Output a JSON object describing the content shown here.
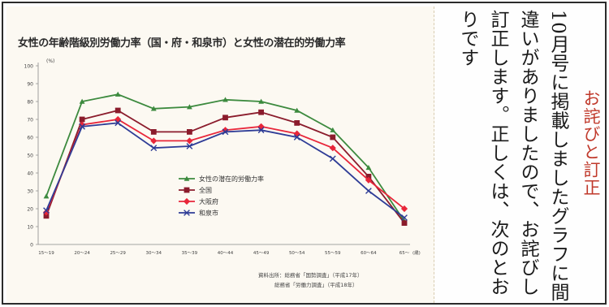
{
  "chart_data": {
    "type": "line",
    "title": "女性の年齢階級別労働力率（国・府・和泉市）と女性の潜在的労働力率",
    "ylabel": "(%)",
    "xlabel": "(歳)",
    "ylim": [
      0,
      100
    ],
    "yticks": [
      0,
      10,
      20,
      30,
      40,
      50,
      60,
      70,
      80,
      90,
      100
    ],
    "categories": [
      "15～19",
      "20～24",
      "25～29",
      "30～34",
      "35～39",
      "40～44",
      "45～49",
      "50～54",
      "55～59",
      "60～64",
      "65～"
    ],
    "series": [
      {
        "name": "女性の潜在的労働力率",
        "color": "#3c8a3e",
        "marker": "triangle",
        "values": [
          27,
          80,
          84,
          76,
          77,
          81,
          80,
          75,
          64,
          43,
          13
        ]
      },
      {
        "name": "全国",
        "color": "#8b1c2c",
        "marker": "square",
        "values": [
          16,
          70,
          75,
          63,
          63,
          71,
          74,
          68,
          60,
          38,
          12
        ]
      },
      {
        "name": "大阪府",
        "color": "#e8263a",
        "marker": "diamond",
        "values": [
          18,
          67,
          70,
          58,
          58,
          64,
          66,
          62,
          54,
          36,
          20
        ]
      },
      {
        "name": "和泉市",
        "color": "#2e3c96",
        "marker": "x",
        "values": [
          19,
          66,
          68,
          54,
          55,
          63,
          64,
          60,
          48,
          30,
          15
        ]
      }
    ],
    "legend_position": "center",
    "grid": false
  },
  "source": {
    "line1": "資料出所：総務省「国勢調査」（平成17年）",
    "line2": "総務省「労働力調査」（平成18年）"
  },
  "notice": {
    "title": "お詫びと訂正",
    "body": "10月号に掲載しましたグラフに間違いがありましたので、お詫びし訂正します。正しくは、次のとおりです"
  }
}
